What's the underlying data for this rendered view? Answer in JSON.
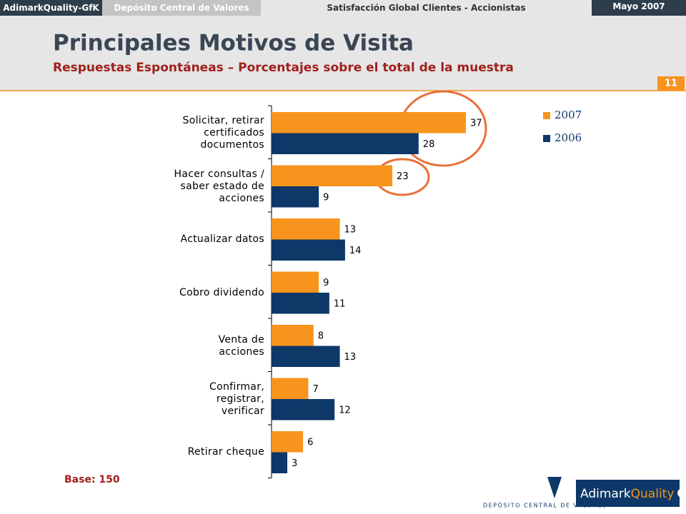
{
  "header": {
    "brand": "AdimarkQuality-GfK",
    "client": "Depósito Central de Valores",
    "study": "Satisfacción Global Clientes - Accionistas",
    "date": "Mayo 2007",
    "page": "11"
  },
  "chart_data": {
    "type": "barh",
    "title": "Principales Motivos de Visita",
    "subtitle": "Respuestas Espontáneas – Porcentajes sobre el total de la muestra",
    "categories": [
      "Solicitar, retirar\ncertificados\ndocumentos",
      "Hacer consultas /\nsaber estado de\nacciones",
      "Actualizar datos",
      "Cobro dividendo",
      "Venta de\nacciones",
      "Confirmar,\nregistrar,\nverificar",
      "Retirar cheque"
    ],
    "series": [
      {
        "name": "2007",
        "color": "#f7941d",
        "values": [
          37,
          23,
          13,
          9,
          8,
          7,
          6
        ]
      },
      {
        "name": "2006",
        "color": "#0d3868",
        "values": [
          28,
          9,
          14,
          11,
          13,
          12,
          3
        ]
      }
    ],
    "xlim": [
      0,
      40
    ],
    "legend": "top-right",
    "note": "Base: 150"
  },
  "footer": {
    "dcv_logo": "DEPÓSITO CENTRAL DE VALORES",
    "logo_a": "Adimark",
    "logo_b": "Quality",
    "logo_c": "GfK"
  }
}
